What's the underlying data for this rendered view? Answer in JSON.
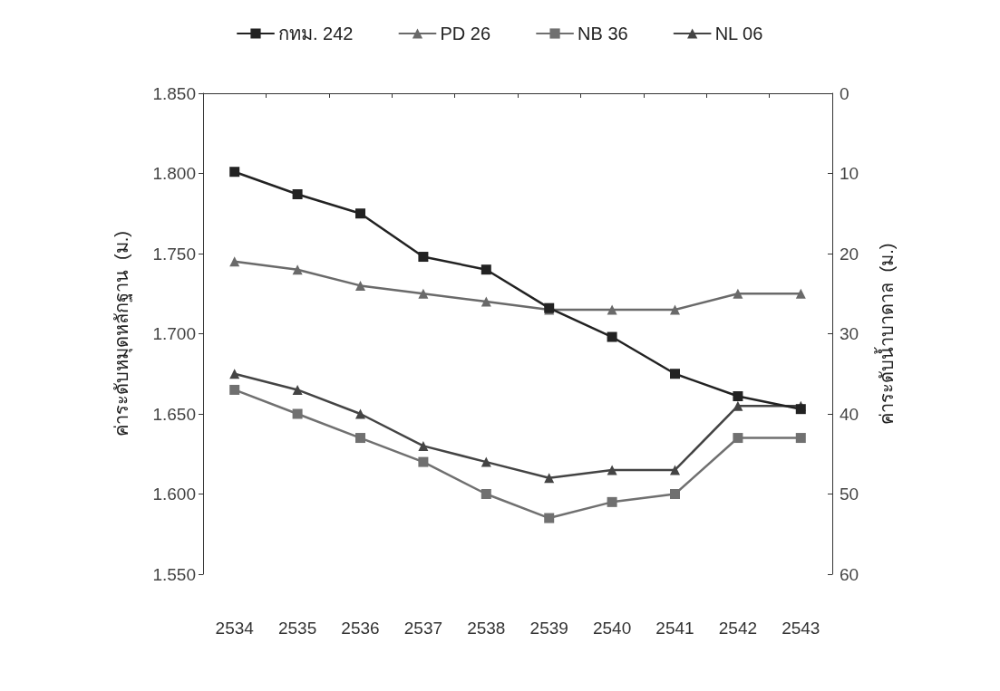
{
  "chart_data": {
    "type": "line",
    "ylabel": "ค่าระดับหมุดหลักฐาน  (ม.)",
    "y2label": "ค่าระดับน้ำบาดาล  (ม.)",
    "categories": [
      "2534",
      "2535",
      "2536",
      "2537",
      "2538",
      "2539",
      "2540",
      "2541",
      "2542",
      "2543"
    ],
    "series": [
      {
        "name": "กทม. 242",
        "color": "#222222",
        "marker": "square",
        "values": [
          1.801,
          1.787,
          1.775,
          1.748,
          1.74,
          1.716,
          1.698,
          1.675,
          1.661,
          1.653
        ]
      },
      {
        "name": "PD 26",
        "color": "#6a6a6a",
        "marker": "triangle",
        "axis": "y2",
        "values": [
          21,
          22,
          24,
          25,
          26,
          27,
          27,
          27,
          25,
          25
        ]
      },
      {
        "name": "NB 36",
        "color": "#707070",
        "marker": "square",
        "axis": "y2",
        "values": [
          37,
          40,
          43,
          46,
          50,
          53,
          51,
          50,
          43,
          43
        ]
      },
      {
        "name": "NL 06",
        "color": "#444444",
        "marker": "triangle",
        "axis": "y2",
        "values": [
          35,
          37,
          40,
          44,
          46,
          48,
          47,
          47,
          39,
          39
        ]
      }
    ],
    "ylim": [
      1.55,
      1.85
    ],
    "yticks": [
      {
        "value": 1.55,
        "label": "1.550"
      },
      {
        "value": 1.6,
        "label": "1.600"
      },
      {
        "value": 1.65,
        "label": "1.650"
      },
      {
        "value": 1.7,
        "label": "1.700"
      },
      {
        "value": 1.75,
        "label": "1.750"
      },
      {
        "value": 1.8,
        "label": "1.800"
      },
      {
        "value": 1.85,
        "label": "1.850"
      }
    ],
    "y2lim": [
      60,
      0
    ],
    "y2ticks": [
      0,
      10,
      20,
      30,
      40,
      50,
      60
    ],
    "legend": "top",
    "grid": false,
    "line_style": "solid"
  }
}
